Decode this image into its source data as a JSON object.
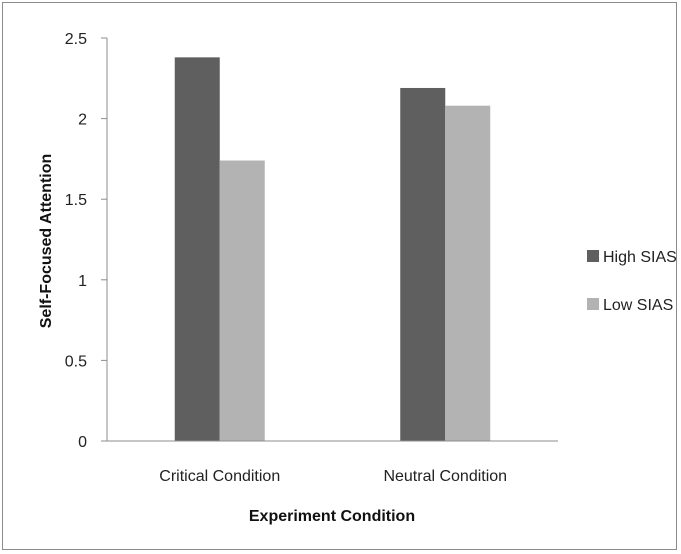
{
  "chart_data": {
    "type": "bar",
    "title": "",
    "xlabel": "Experiment Condition",
    "ylabel": "Self-Focused Attention",
    "categories": [
      "Critical Condition",
      "Neutral Condition"
    ],
    "series": [
      {
        "name": "High SIAS",
        "color": "#5f5f5f",
        "values": [
          2.38,
          2.19
        ]
      },
      {
        "name": "Low SIAS",
        "color": "#b3b3b3",
        "values": [
          1.74,
          2.08
        ]
      }
    ],
    "ylim": [
      0,
      2.5
    ],
    "yticks": [
      0,
      0.5,
      1,
      1.5,
      2,
      2.5
    ],
    "ytick_labels": [
      "0",
      "0.5",
      "1",
      "1.5",
      "2",
      "2.5"
    ],
    "grid": false,
    "legend_position": "right"
  }
}
